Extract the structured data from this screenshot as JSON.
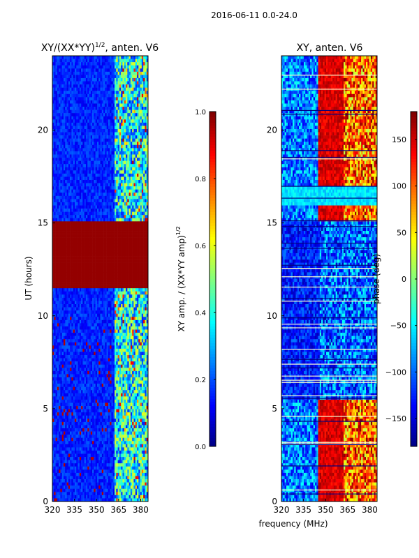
{
  "chart_data": {
    "type": "heatmap",
    "suptitle": "2016-06-11 0.0-24.0",
    "shared_xlabel": "frequency (MHz)",
    "panels": [
      {
        "id": "amp",
        "title_main": "XY/(XX*YY)",
        "title_exp": "1/2",
        "title_rest": ", anten. V6",
        "ylabel": "UT (hours)",
        "xlim": [
          320,
          385
        ],
        "ylim": [
          0,
          24
        ],
        "xticks": [
          320,
          335,
          350,
          365,
          380
        ],
        "yticks": [
          0,
          5,
          10,
          15,
          20
        ],
        "colorbar": {
          "label_main": "XY amp. / (XX*YY amp)",
          "label_exp": "1/2",
          "range": [
            0.0,
            1.0
          ],
          "ticks": [
            "0.0",
            "0.2",
            "0.4",
            "0.6",
            "0.8",
            "1.0"
          ],
          "tick_values": [
            0.0,
            0.2,
            0.4,
            0.6,
            0.8,
            1.0
          ],
          "colormap": "jet"
        }
      },
      {
        "id": "phase",
        "title_main": "XY, anten. V6",
        "ylabel": "",
        "xlim": [
          320,
          385
        ],
        "ylim": [
          0,
          24
        ],
        "xticks": [
          320,
          335,
          350,
          365,
          380
        ],
        "yticks": [
          0,
          5,
          10,
          15,
          20
        ],
        "colorbar": {
          "label_main": "phase (deg)",
          "range": [
            -180,
            180
          ],
          "ticks": [
            "150",
            "100",
            "50",
            "0",
            "−50",
            "−100",
            "−150"
          ],
          "tick_values": [
            150,
            100,
            50,
            0,
            -50,
            -100,
            -150
          ],
          "colormap": "jet"
        }
      }
    ]
  },
  "colors": {
    "jet_low": "#00007f",
    "jet_high": "#7f0000"
  }
}
